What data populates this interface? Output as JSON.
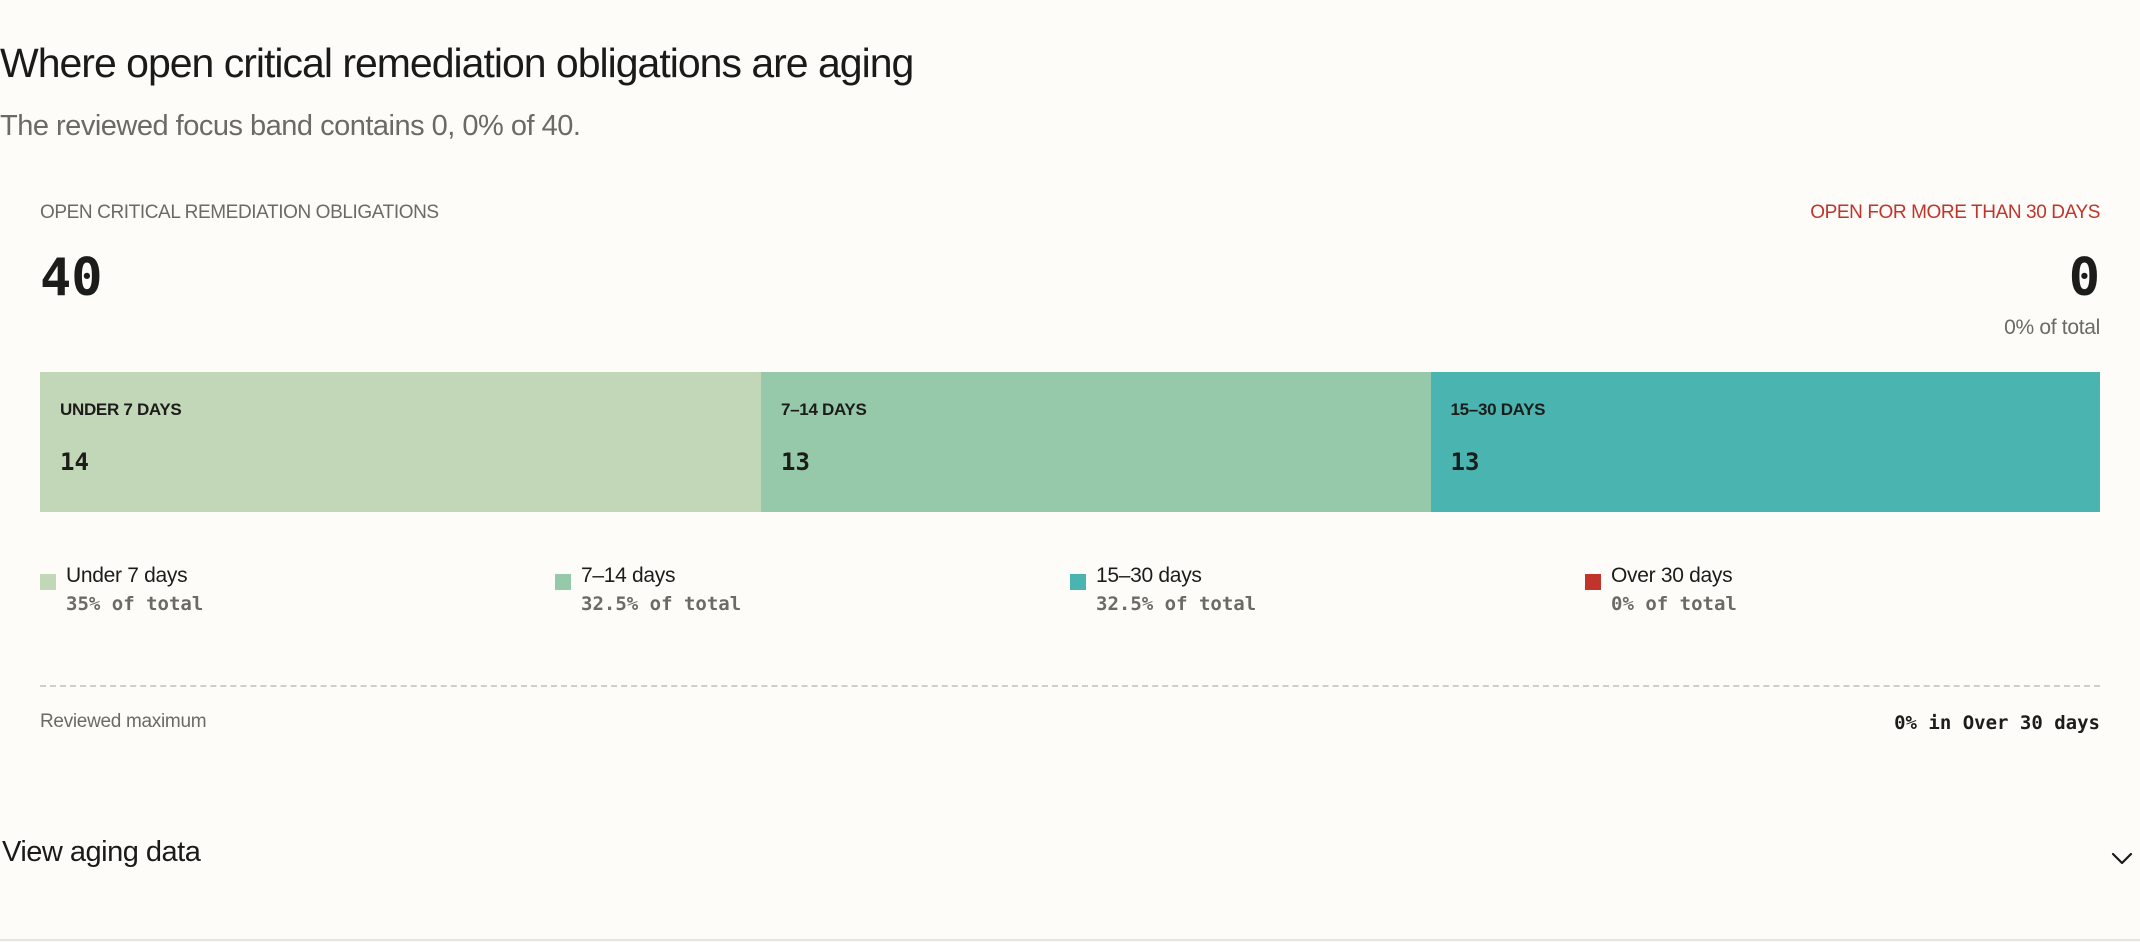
{
  "header": {
    "title": "Where open critical remediation obligations are aging",
    "subtitle": "The reviewed focus band contains 0, 0% of 40."
  },
  "kpi": {
    "total_label": "OPEN CRITICAL REMEDIATION OBLIGATIONS",
    "total_value": "40",
    "focus_label": "OPEN FOR MORE THAN 30 DAYS",
    "focus_value": "0",
    "focus_share": "0% of total"
  },
  "colors": {
    "under_7": "#c2d6b8",
    "d7_14": "#96c8aa",
    "d15_30": "#4ab5b0",
    "over_30": "#c0342b",
    "accent_text": "#c0342b"
  },
  "chart_data": {
    "type": "bar",
    "orientation": "horizontal-stacked",
    "categories": [
      "Under 7 days",
      "7–14 days",
      "15–30 days",
      "Over 30 days"
    ],
    "segment_labels": [
      "UNDER 7 DAYS",
      "7–14 DAYS",
      "15–30 DAYS",
      "OVER 30 DAYS"
    ],
    "values": [
      14,
      13,
      13,
      0
    ],
    "value_labels": [
      "14",
      "13",
      "13",
      "0"
    ],
    "shares": [
      "35% of total",
      "32.5% of total",
      "32.5% of total",
      "0% of total"
    ],
    "total": 40,
    "legend_placement": "bottom"
  },
  "footer": {
    "left_label": "Reviewed maximum",
    "right_label": "0% in Over 30 days"
  },
  "details": {
    "label": "View aging data",
    "icon": "chevron-down-icon"
  }
}
